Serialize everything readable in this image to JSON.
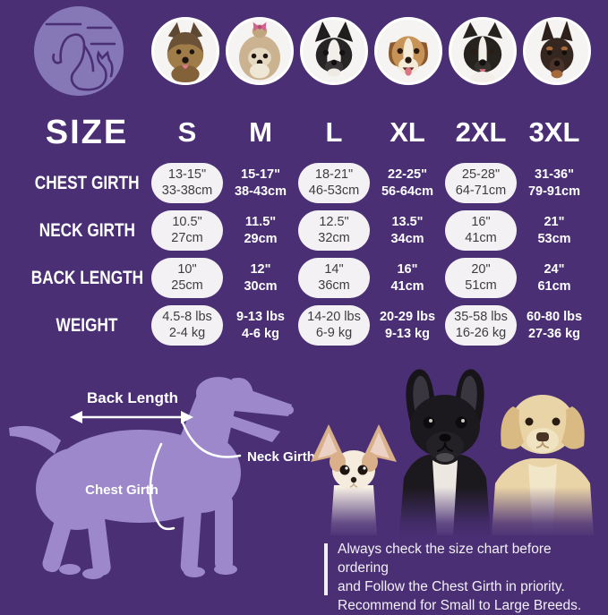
{
  "colors": {
    "background": "#4a2f75",
    "pill": "#f3f1f4",
    "pill_text": "#3d3d3f",
    "text": "#ffffff",
    "silhouette": "#9c88cb",
    "logo_circle": "#8677b7"
  },
  "header": {
    "logo_icon": "dog-and-cat-logo-icon",
    "breed_photos": [
      "Yorkshire Terrier",
      "Shih Tzu",
      "Boston Terrier",
      "Beagle",
      "Border Collie",
      "Doberman"
    ]
  },
  "table": {
    "size_label": "SIZE",
    "columns": [
      "S",
      "M",
      "L",
      "XL",
      "2XL",
      "3XL"
    ],
    "pill_columns": [
      true,
      false,
      true,
      false,
      true,
      false
    ],
    "rows": [
      {
        "label": "CHEST GIRTH",
        "cells": [
          [
            "13-15\"",
            "33-38cm"
          ],
          [
            "15-17\"",
            "38-43cm"
          ],
          [
            "18-21\"",
            "46-53cm"
          ],
          [
            "22-25\"",
            "56-64cm"
          ],
          [
            "25-28\"",
            "64-71cm"
          ],
          [
            "31-36\"",
            "79-91cm"
          ]
        ]
      },
      {
        "label": "NECK GIRTH",
        "cells": [
          [
            "10.5\"",
            "27cm"
          ],
          [
            "11.5\"",
            "29cm"
          ],
          [
            "12.5\"",
            "32cm"
          ],
          [
            "13.5\"",
            "34cm"
          ],
          [
            "16\"",
            "41cm"
          ],
          [
            "21\"",
            "53cm"
          ]
        ]
      },
      {
        "label": "BACK LENGTH",
        "cells": [
          [
            "10\"",
            "25cm"
          ],
          [
            "12\"",
            "30cm"
          ],
          [
            "14\"",
            "36cm"
          ],
          [
            "16\"",
            "41cm"
          ],
          [
            "20\"",
            "51cm"
          ],
          [
            "24\"",
            "61cm"
          ]
        ]
      },
      {
        "label": "WEIGHT",
        "cells": [
          [
            "4.5-8 lbs",
            "2-4 kg"
          ],
          [
            "9-13 lbs",
            "4-6 kg"
          ],
          [
            "14-20 lbs",
            "6-9 kg"
          ],
          [
            "20-29 lbs",
            "9-13 kg"
          ],
          [
            "35-58 lbs",
            "16-26 kg"
          ],
          [
            "60-80 lbs",
            "27-36 kg"
          ]
        ]
      }
    ]
  },
  "diagram": {
    "back_length_label": "Back Length",
    "neck_girth_label": "Neck Girth",
    "chest_girth_label": "Chest Girth"
  },
  "bottom_photos": [
    "Chihuahua",
    "French Bulldog",
    "Labrador Retriever"
  ],
  "note": {
    "lines": [
      "Always check the size chart before ordering",
      "and Follow the Chest Girth in priority.",
      "Recommend for Small to Large Breeds."
    ]
  }
}
